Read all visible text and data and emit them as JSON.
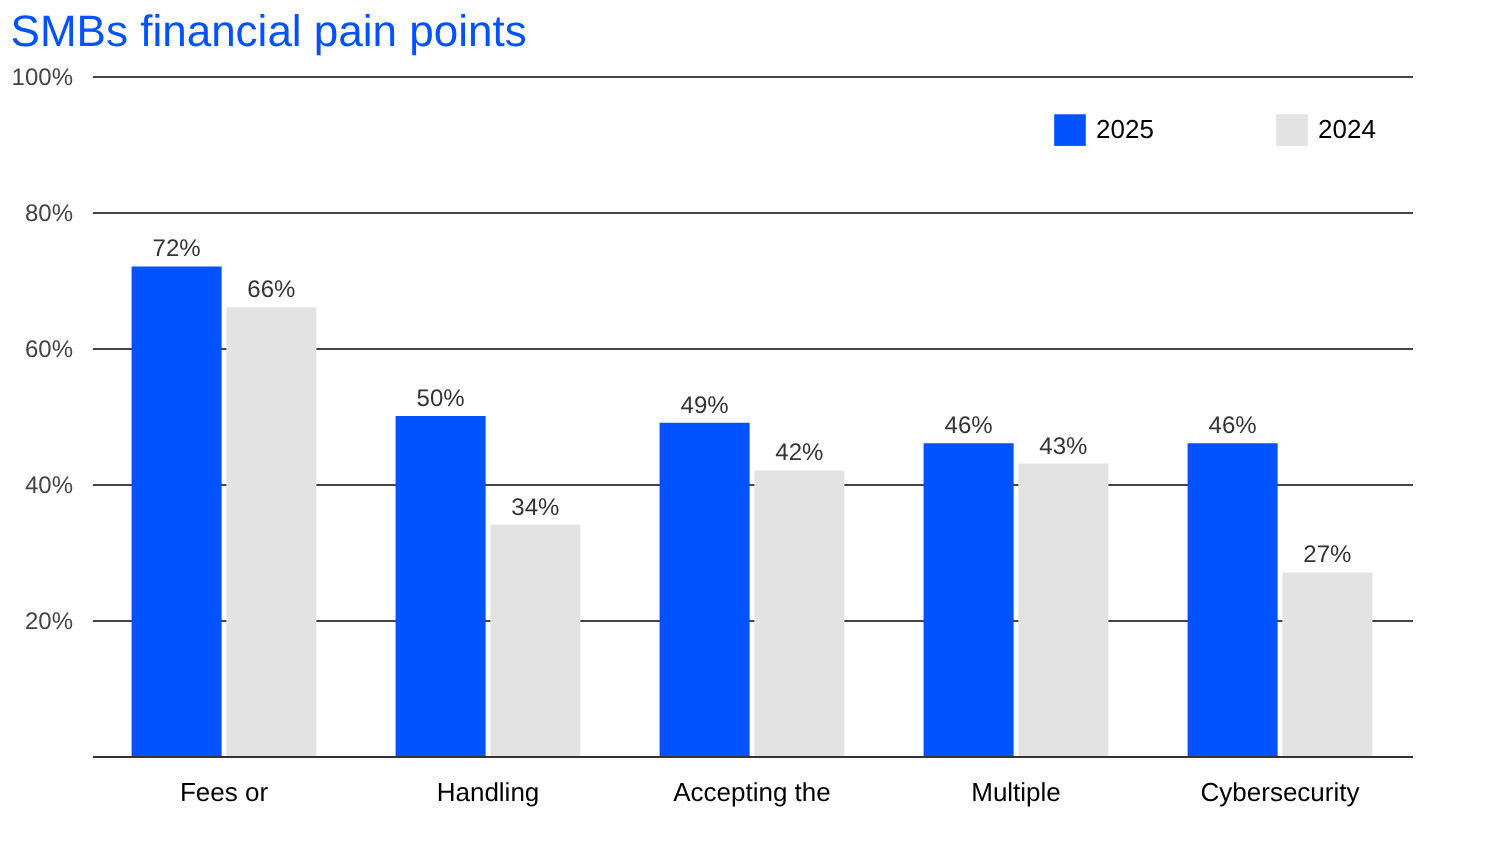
{
  "chart_data": {
    "type": "bar",
    "title": "SMBs financial pain points",
    "categories": [
      "Fees or",
      "Handling",
      "Accepting the",
      "Multiple",
      "Cybersecurity"
    ],
    "series": [
      {
        "name": "2025",
        "color": "#0052ff",
        "values": [
          72,
          50,
          49,
          46,
          46
        ],
        "value_labels": [
          "72%",
          "50%",
          "49%",
          "46%",
          "46%"
        ]
      },
      {
        "name": "2024",
        "color": "#e3e3e3",
        "values": [
          66,
          34,
          42,
          43,
          27
        ],
        "value_labels": [
          "66%",
          "34%",
          "42%",
          "43%",
          "27%"
        ]
      }
    ],
    "ylim": [
      0,
      100
    ],
    "yticks": [
      {
        "value": 20,
        "label": "20%"
      },
      {
        "value": 40,
        "label": "40%"
      },
      {
        "value": 60,
        "label": "60%"
      },
      {
        "value": 80,
        "label": "80%"
      },
      {
        "value": 100,
        "label": "100%"
      }
    ],
    "grid": "y",
    "legend": "top right"
  }
}
